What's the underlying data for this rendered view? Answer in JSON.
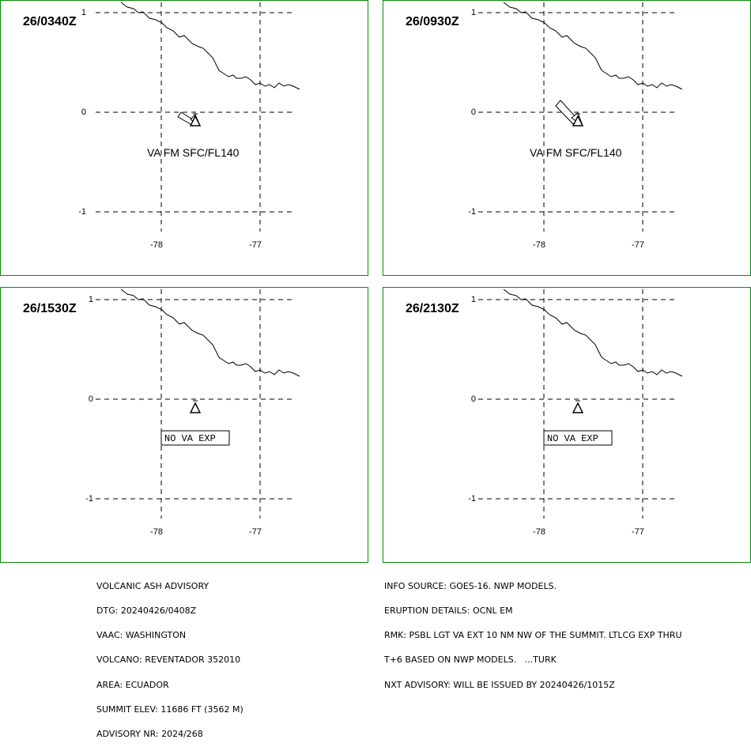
{
  "panels": [
    {
      "time": "26/0340Z",
      "label": "VA FM SFC/FL140",
      "label_type": "text",
      "arrow_length": 1
    },
    {
      "time": "26/0930Z",
      "label": "VA FM SFC/FL140",
      "label_type": "text",
      "arrow_length": 2
    },
    {
      "time": "26/1530Z",
      "label": "NO VA EXP",
      "label_type": "boxed",
      "arrow_length": 0
    },
    {
      "time": "26/2130Z",
      "label": "NO VA EXP",
      "label_type": "boxed",
      "arrow_length": 0
    }
  ],
  "axes": {
    "lat_ticks": [
      "1",
      "0",
      "-1"
    ],
    "lon_ticks": [
      "-78",
      "-77"
    ]
  },
  "advisory_left": [
    "VOLCANIC ASH ADVISORY",
    "DTG: 20240426/0408Z",
    "VAAC: WASHINGTON",
    "VOLCANO: REVENTADOR 352010",
    "AREA: ECUADOR",
    "SUMMIT ELEV: 11686 FT (3562 M)",
    "ADVISORY NR: 2024/268"
  ],
  "advisory_right": [
    "INFO SOURCE: GOES-16. NWP MODELS.",
    "ERUPTION DETAILS: OCNL EM",
    "RMK: PSBL LGT VA EXT 10 NM NW OF THE SUMMIT. LTLCG EXP THRU",
    "T+6 BASED ON NWP MODELS.   ...TURK",
    "NXT ADVISORY: WILL BE ISSUED BY 20240426/1015Z"
  ],
  "colors": {
    "frame": "#0a8a0a",
    "lines": "#000000"
  }
}
